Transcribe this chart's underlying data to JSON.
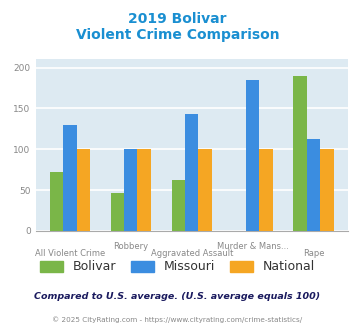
{
  "title_line1": "2019 Bolivar",
  "title_line2": "Violent Crime Comparison",
  "title_color": "#1a8fd1",
  "categories": [
    "All Violent Crime",
    "Robbery",
    "Aggravated Assault",
    "Murder & Mans...",
    "Rape"
  ],
  "row1_labels": [
    "",
    "Robbery",
    "",
    "Murder & Mans...",
    ""
  ],
  "row2_labels": [
    "All Violent Crime",
    "",
    "Aggravated Assault",
    "",
    "Rape"
  ],
  "bolivar": [
    72,
    46,
    62,
    0,
    190
  ],
  "missouri": [
    130,
    100,
    143,
    185,
    112
  ],
  "national": [
    100,
    100,
    100,
    100,
    100
  ],
  "bolivar_color": "#7ab648",
  "missouri_color": "#3b8de0",
  "national_color": "#f5a623",
  "ylim": [
    0,
    210
  ],
  "yticks": [
    0,
    50,
    100,
    150,
    200
  ],
  "legend_labels": [
    "Bolivar",
    "Missouri",
    "National"
  ],
  "legend_fontsize": 9,
  "footnote1": "Compared to U.S. average. (U.S. average equals 100)",
  "footnote2": "© 2025 CityRating.com - https://www.cityrating.com/crime-statistics/",
  "footnote1_color": "#1a1a5e",
  "footnote2_color": "#888888",
  "bg_color": "#ddeaf2",
  "fig_bg": "#ffffff",
  "bar_width": 0.22,
  "grid_color": "#ffffff",
  "tick_label_color": "#888888",
  "title_fontsize": 10
}
